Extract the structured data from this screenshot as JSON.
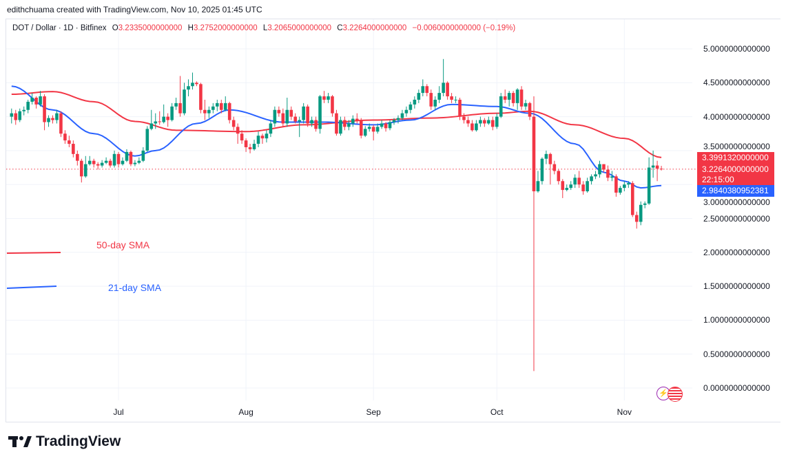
{
  "credit": "edithchuama created with TradingView.com, Nov 10, 2025 01:45 UTC",
  "legend": {
    "symbol": "DOT / Dollar · 1D · Bitfinex",
    "o_label": "O",
    "o": "3.2335000000000",
    "h_label": "H",
    "h": "3.2752000000000",
    "l_label": "L",
    "l": "3.2065000000000",
    "c_label": "C",
    "c": "3.2264000000000",
    "change": "−0.0060000000000 (−0.19%)"
  },
  "price_tags": {
    "sma50": "3.3991320000000",
    "last": "3.2264000000000",
    "countdown": "22:15:00",
    "sma21": "2.9840380952381"
  },
  "sma_labels": {
    "sma50": "50-day SMA",
    "sma21": "21-day SMA"
  },
  "logo": "TradingView",
  "colors": {
    "up": "#089981",
    "down": "#f23645",
    "sma50": "#f23645",
    "sma21": "#2962ff"
  },
  "chart_data": {
    "type": "candlestick",
    "title": "DOT / Dollar · 1D · Bitfinex",
    "ylim": [
      -0.1,
      5.1
    ],
    "y_ticks": [
      "5.0000000000000",
      "4.5000000000000",
      "4.0000000000000",
      "3.5000000000000",
      "3.0000000000000",
      "2.5000000000000",
      "2.0000000000000",
      "1.5000000000000",
      "1.0000000000000",
      "0.5000000000000",
      "0.0000000000000"
    ],
    "y_tick_values": [
      5,
      4.5,
      4,
      3.5,
      3,
      2.5,
      2,
      1.5,
      1,
      0.5,
      0
    ],
    "x_ticks": [
      {
        "label": "Jul",
        "date": "Jul 1"
      },
      {
        "label": "Aug",
        "date": "Aug 1"
      },
      {
        "label": "Sep",
        "date": "Sep 1"
      },
      {
        "label": "Oct",
        "date": "Oct 1"
      },
      {
        "label": "Nov",
        "date": "Nov 1"
      }
    ],
    "grid": true,
    "last_price": 3.2264,
    "candles": [
      [
        "Jun 5",
        4.0,
        4.12,
        3.9,
        4.05
      ],
      [
        "Jun 6",
        4.05,
        4.1,
        3.88,
        3.95
      ],
      [
        "Jun 7",
        3.95,
        4.12,
        3.92,
        4.08
      ],
      [
        "Jun 8",
        4.08,
        4.15,
        4.02,
        4.1
      ],
      [
        "Jun 9",
        4.1,
        4.25,
        4.05,
        4.22
      ],
      [
        "Jun 10",
        4.22,
        4.35,
        4.18,
        4.28
      ],
      [
        "Jun 11",
        4.28,
        4.3,
        4.12,
        4.18
      ],
      [
        "Jun 12",
        4.18,
        4.38,
        4.15,
        4.3
      ],
      [
        "Jun 13",
        4.3,
        4.33,
        3.8,
        3.92
      ],
      [
        "Jun 14",
        3.92,
        4.02,
        3.85,
        3.98
      ],
      [
        "Jun 15",
        3.98,
        4.02,
        3.9,
        3.95
      ],
      [
        "Jun 16",
        3.95,
        4.1,
        3.9,
        4.05
      ],
      [
        "Jun 17",
        4.05,
        4.08,
        3.7,
        3.75
      ],
      [
        "Jun 18",
        3.75,
        3.8,
        3.6,
        3.65
      ],
      [
        "Jun 19",
        3.65,
        3.72,
        3.55,
        3.6
      ],
      [
        "Jun 20",
        3.6,
        3.65,
        3.4,
        3.45
      ],
      [
        "Jun 21",
        3.45,
        3.5,
        3.28,
        3.35
      ],
      [
        "Jun 22",
        3.35,
        3.38,
        3.03,
        3.12
      ],
      [
        "Jun 23",
        3.12,
        3.42,
        3.1,
        3.3
      ],
      [
        "Jun 24",
        3.3,
        3.42,
        3.28,
        3.35
      ],
      [
        "Jun 25",
        3.35,
        3.38,
        3.25,
        3.3
      ],
      [
        "Jun 26",
        3.3,
        3.33,
        3.22,
        3.28
      ],
      [
        "Jun 27",
        3.28,
        3.36,
        3.25,
        3.32
      ],
      [
        "Jun 28",
        3.32,
        3.4,
        3.3,
        3.35
      ],
      [
        "Jun 29",
        3.35,
        3.38,
        3.25,
        3.28
      ],
      [
        "Jun 30",
        3.28,
        3.5,
        3.25,
        3.45
      ],
      [
        "Jul 1",
        3.45,
        3.48,
        3.25,
        3.3
      ],
      [
        "Jul 2",
        3.3,
        3.4,
        3.28,
        3.35
      ],
      [
        "Jul 3",
        3.35,
        3.52,
        3.33,
        3.48
      ],
      [
        "Jul 4",
        3.48,
        3.5,
        3.27,
        3.3
      ],
      [
        "Jul 5",
        3.3,
        3.36,
        3.27,
        3.32
      ],
      [
        "Jul 6",
        3.32,
        3.4,
        3.3,
        3.35
      ],
      [
        "Jul 7",
        3.35,
        3.55,
        3.33,
        3.5
      ],
      [
        "Jul 8",
        3.5,
        3.86,
        3.48,
        3.82
      ],
      [
        "Jul 9",
        3.82,
        4.1,
        3.8,
        3.9
      ],
      [
        "Jul 10",
        3.9,
        4.05,
        3.82,
        3.93
      ],
      [
        "Jul 11",
        3.93,
        4.08,
        3.88,
        3.92
      ],
      [
        "Jul 12",
        3.92,
        4.18,
        3.9,
        4.0
      ],
      [
        "Jul 13",
        4.0,
        4.05,
        3.85,
        3.95
      ],
      [
        "Jul 14",
        3.95,
        4.2,
        3.93,
        4.15
      ],
      [
        "Jul 15",
        4.15,
        4.28,
        4.1,
        4.2
      ],
      [
        "Jul 16",
        4.2,
        4.6,
        4.0,
        4.05
      ],
      [
        "Jul 17",
        4.05,
        4.5,
        4.02,
        4.4
      ],
      [
        "Jul 18",
        4.4,
        4.55,
        4.3,
        4.45
      ],
      [
        "Jul 19",
        4.45,
        4.65,
        4.4,
        4.5
      ],
      [
        "Jul 20",
        4.5,
        4.52,
        4.45,
        4.48
      ],
      [
        "Jul 21",
        4.48,
        4.5,
        4.05,
        4.1
      ],
      [
        "Jul 22",
        4.1,
        4.25,
        3.95,
        4.05
      ],
      [
        "Jul 23",
        4.05,
        4.15,
        3.98,
        4.1
      ],
      [
        "Jul 24",
        4.1,
        4.2,
        4.05,
        4.15
      ],
      [
        "Jul 25",
        4.15,
        4.25,
        4.08,
        4.2
      ],
      [
        "Jul 26",
        4.2,
        4.25,
        4.05,
        4.1
      ],
      [
        "Jul 27",
        4.1,
        4.3,
        4.08,
        4.2
      ],
      [
        "Jul 28",
        4.2,
        4.22,
        3.9,
        3.95
      ],
      [
        "Jul 29",
        3.95,
        4.0,
        3.8,
        3.85
      ],
      [
        "Jul 30",
        3.85,
        3.9,
        3.6,
        3.75
      ],
      [
        "Jul 31",
        3.75,
        3.8,
        3.6,
        3.65
      ],
      [
        "Aug 1",
        3.65,
        3.68,
        3.48,
        3.55
      ],
      [
        "Aug 2",
        3.55,
        3.6,
        3.46,
        3.52
      ],
      [
        "Aug 3",
        3.52,
        3.66,
        3.5,
        3.6
      ],
      [
        "Aug 4",
        3.6,
        3.78,
        3.55,
        3.72
      ],
      [
        "Aug 5",
        3.72,
        3.75,
        3.6,
        3.68
      ],
      [
        "Aug 6",
        3.68,
        3.8,
        3.62,
        3.75
      ],
      [
        "Aug 7",
        3.75,
        3.95,
        3.7,
        3.9
      ],
      [
        "Aug 8",
        3.9,
        4.15,
        3.85,
        4.1
      ],
      [
        "Aug 9",
        4.1,
        4.15,
        4.0,
        4.05
      ],
      [
        "Aug 10",
        4.05,
        4.12,
        3.85,
        3.9
      ],
      [
        "Aug 11",
        3.9,
        4.28,
        3.85,
        4.1
      ],
      [
        "Aug 12",
        4.1,
        4.15,
        3.95,
        4.0
      ],
      [
        "Aug 13",
        4.0,
        4.05,
        3.9,
        3.93
      ],
      [
        "Aug 14",
        3.93,
        4.0,
        3.7,
        3.95
      ],
      [
        "Aug 15",
        3.95,
        4.2,
        3.9,
        4.15
      ],
      [
        "Aug 16",
        4.15,
        4.18,
        3.85,
        3.9
      ],
      [
        "Aug 17",
        3.9,
        4.0,
        3.85,
        3.95
      ],
      [
        "Aug 18",
        3.95,
        4.0,
        3.78,
        3.82
      ],
      [
        "Aug 19",
        3.82,
        4.32,
        3.75,
        4.3
      ],
      [
        "Aug 20",
        4.3,
        4.38,
        4.2,
        4.25
      ],
      [
        "Aug 21",
        4.25,
        4.35,
        4.2,
        4.3
      ],
      [
        "Aug 22",
        4.3,
        4.32,
        4.0,
        4.05
      ],
      [
        "Aug 23",
        4.05,
        4.1,
        3.72,
        3.75
      ],
      [
        "Aug 24",
        3.75,
        4.0,
        3.72,
        3.95
      ],
      [
        "Aug 25",
        3.95,
        4.0,
        3.8,
        3.85
      ],
      [
        "Aug 26",
        3.85,
        3.95,
        3.8,
        3.9
      ],
      [
        "Aug 27",
        3.9,
        4.02,
        3.85,
        3.97
      ],
      [
        "Aug 28",
        3.97,
        4.05,
        3.9,
        3.95
      ],
      [
        "Aug 29",
        3.95,
        3.98,
        3.68,
        3.72
      ],
      [
        "Aug 30",
        3.72,
        3.86,
        3.7,
        3.82
      ],
      [
        "Aug 31",
        3.82,
        3.9,
        3.78,
        3.85
      ],
      [
        "Sep 1",
        3.85,
        3.88,
        3.65,
        3.78
      ],
      [
        "Sep 2",
        3.78,
        3.9,
        3.75,
        3.85
      ],
      [
        "Sep 3",
        3.85,
        3.95,
        3.82,
        3.9
      ],
      [
        "Sep 4",
        3.9,
        3.92,
        3.78,
        3.83
      ],
      [
        "Sep 5",
        3.83,
        3.95,
        3.8,
        3.92
      ],
      [
        "Sep 6",
        3.92,
        3.98,
        3.88,
        3.95
      ],
      [
        "Sep 7",
        3.95,
        4.02,
        3.9,
        3.98
      ],
      [
        "Sep 8",
        3.98,
        4.1,
        3.95,
        4.05
      ],
      [
        "Sep 9",
        4.05,
        4.15,
        4.0,
        4.1
      ],
      [
        "Sep 10",
        4.1,
        4.22,
        4.05,
        4.18
      ],
      [
        "Sep 11",
        4.18,
        4.3,
        4.12,
        4.25
      ],
      [
        "Sep 12",
        4.25,
        4.4,
        4.2,
        4.35
      ],
      [
        "Sep 13",
        4.35,
        4.55,
        4.3,
        4.45
      ],
      [
        "Sep 14",
        4.45,
        4.48,
        4.3,
        4.35
      ],
      [
        "Sep 15",
        4.35,
        4.4,
        4.1,
        4.15
      ],
      [
        "Sep 16",
        4.15,
        4.3,
        4.1,
        4.25
      ],
      [
        "Sep 17",
        4.25,
        4.45,
        4.2,
        4.35
      ],
      [
        "Sep 18",
        4.35,
        4.85,
        4.3,
        4.5
      ],
      [
        "Sep 19",
        4.5,
        4.52,
        4.25,
        4.3
      ],
      [
        "Sep 20",
        4.3,
        4.35,
        4.2,
        4.25
      ],
      [
        "Sep 21",
        4.25,
        4.3,
        4.2,
        4.25
      ],
      [
        "Sep 22",
        4.25,
        4.28,
        3.95,
        4.0
      ],
      [
        "Sep 23",
        4.0,
        4.05,
        3.9,
        3.95
      ],
      [
        "Sep 24",
        3.95,
        4.0,
        3.85,
        3.9
      ],
      [
        "Sep 25",
        3.9,
        3.95,
        3.78,
        3.8
      ],
      [
        "Sep 26",
        3.8,
        3.95,
        3.78,
        3.9
      ],
      [
        "Sep 27",
        3.9,
        4.0,
        3.85,
        3.95
      ],
      [
        "Sep 28",
        3.95,
        3.98,
        3.85,
        3.9
      ],
      [
        "Sep 29",
        3.9,
        4.0,
        3.88,
        3.95
      ],
      [
        "Sep 30",
        3.95,
        4.0,
        3.8,
        3.85
      ],
      [
        "Oct 1",
        3.85,
        4.05,
        3.82,
        4.0
      ],
      [
        "Oct 2",
        4.0,
        4.35,
        3.98,
        4.3
      ],
      [
        "Oct 3",
        4.3,
        4.4,
        4.2,
        4.25
      ],
      [
        "Oct 4",
        4.25,
        4.38,
        4.15,
        4.35
      ],
      [
        "Oct 5",
        4.35,
        4.38,
        4.15,
        4.2
      ],
      [
        "Oct 6",
        4.2,
        4.42,
        4.1,
        4.4
      ],
      [
        "Oct 7",
        4.4,
        4.45,
        4.1,
        4.15
      ],
      [
        "Oct 8",
        4.15,
        4.25,
        4.1,
        4.2
      ],
      [
        "Oct 9",
        4.2,
        4.22,
        3.95,
        4.0
      ],
      [
        "Oct 10",
        4.0,
        4.3,
        0.25,
        2.9
      ],
      [
        "Oct 11",
        2.9,
        3.2,
        2.88,
        3.05
      ],
      [
        "Oct 12",
        3.05,
        3.4,
        3.0,
        3.38
      ],
      [
        "Oct 13",
        3.38,
        3.5,
        3.3,
        3.45
      ],
      [
        "Oct 14",
        3.45,
        3.47,
        3.0,
        3.3
      ],
      [
        "Oct 15",
        3.3,
        3.35,
        3.15,
        3.2
      ],
      [
        "Oct 16",
        3.2,
        3.22,
        3.0,
        3.05
      ],
      [
        "Oct 17",
        3.05,
        3.08,
        2.8,
        2.92
      ],
      [
        "Oct 18",
        2.92,
        3.0,
        2.9,
        2.95
      ],
      [
        "Oct 19",
        2.95,
        3.05,
        2.92,
        3.0
      ],
      [
        "Oct 20",
        3.0,
        3.15,
        2.95,
        3.1
      ],
      [
        "Oct 21",
        3.1,
        3.2,
        2.95,
        3.0
      ],
      [
        "Oct 22",
        3.0,
        3.05,
        2.85,
        2.9
      ],
      [
        "Oct 23",
        2.9,
        3.1,
        2.88,
        3.05
      ],
      [
        "Oct 24",
        3.05,
        3.15,
        3.0,
        3.12
      ],
      [
        "Oct 25",
        3.12,
        3.2,
        3.08,
        3.15
      ],
      [
        "Oct 26",
        3.15,
        3.35,
        3.1,
        3.3
      ],
      [
        "Oct 27",
        3.3,
        3.3,
        3.18,
        3.22
      ],
      [
        "Oct 28",
        3.22,
        3.28,
        3.05,
        3.1
      ],
      [
        "Oct 29",
        3.1,
        3.2,
        3.05,
        3.12
      ],
      [
        "Oct 30",
        3.12,
        3.15,
        2.82,
        2.88
      ],
      [
        "Oct 31",
        2.88,
        2.98,
        2.85,
        2.95
      ],
      [
        "Nov 1",
        2.95,
        3.05,
        2.9,
        3.0
      ],
      [
        "Nov 2",
        3.0,
        3.05,
        2.95,
        3.02
      ],
      [
        "Nov 3",
        3.02,
        3.05,
        2.52,
        2.55
      ],
      [
        "Nov 4",
        2.55,
        2.6,
        2.35,
        2.45
      ],
      [
        "Nov 5",
        2.45,
        2.75,
        2.4,
        2.7
      ],
      [
        "Nov 6",
        2.7,
        2.75,
        2.65,
        2.72
      ],
      [
        "Nov 7",
        2.72,
        3.4,
        2.7,
        3.25
      ],
      [
        "Nov 8",
        3.25,
        3.5,
        3.1,
        3.28
      ],
      [
        "Nov 9",
        3.28,
        3.35,
        3.05,
        3.2335
      ],
      [
        "Nov 10",
        3.2335,
        3.2752,
        3.2065,
        3.2264
      ]
    ],
    "series": [
      {
        "name": "50-day SMA",
        "points": [
          [
            "Jun 5",
            4.33
          ],
          [
            "Jun 15",
            4.37
          ],
          [
            "Jun 25",
            4.22
          ],
          [
            "Jul 5",
            3.93
          ],
          [
            "Jul 15",
            3.8
          ],
          [
            "Aug 1",
            3.78
          ],
          [
            "Aug 15",
            3.88
          ],
          [
            "Sep 1",
            3.95
          ],
          [
            "Sep 15",
            3.98
          ],
          [
            "Oct 1",
            4.05
          ],
          [
            "Oct 9",
            4.08
          ],
          [
            "Oct 20",
            3.88
          ],
          [
            "Nov 1",
            3.68
          ],
          [
            "Nov 10",
            3.399132
          ]
        ]
      },
      {
        "name": "21-day SMA",
        "points": [
          [
            "Jun 5",
            4.45
          ],
          [
            "Jun 15",
            4.1
          ],
          [
            "Jun 25",
            3.75
          ],
          [
            "Jul 5",
            3.42
          ],
          [
            "Jul 10",
            3.5
          ],
          [
            "Jul 20",
            3.9
          ],
          [
            "Jul 28",
            4.1
          ],
          [
            "Aug 10",
            3.92
          ],
          [
            "Aug 20",
            3.92
          ],
          [
            "Sep 1",
            3.88
          ],
          [
            "Sep 10",
            3.95
          ],
          [
            "Sep 20",
            4.18
          ],
          [
            "Oct 1",
            4.15
          ],
          [
            "Oct 9",
            4.05
          ],
          [
            "Oct 20",
            3.6
          ],
          [
            "Oct 27",
            3.18
          ],
          [
            "Nov 1",
            3.05
          ],
          [
            "Nov 5",
            2.95
          ],
          [
            "Nov 10",
            2.984038
          ]
        ]
      }
    ]
  }
}
